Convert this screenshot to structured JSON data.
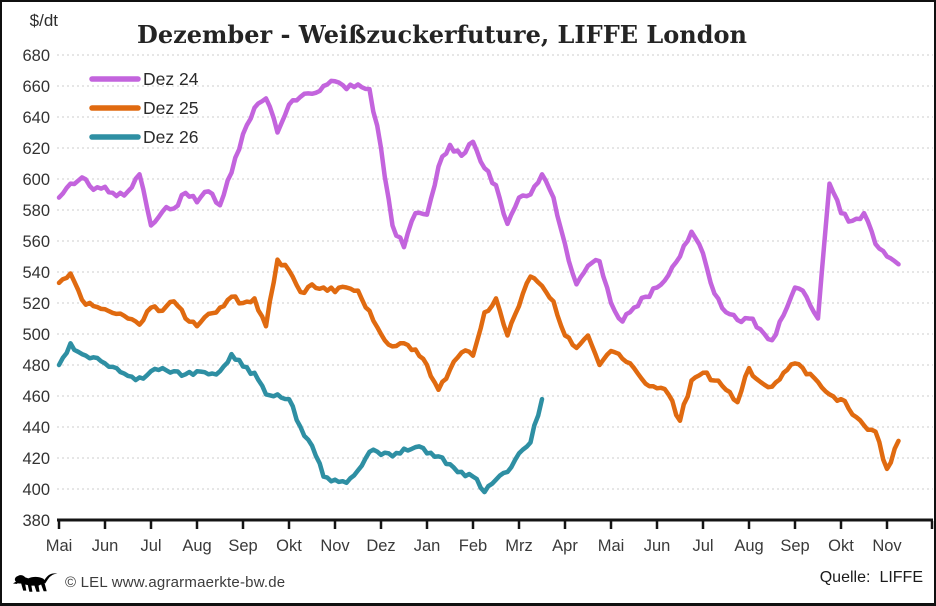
{
  "chart_data": {
    "type": "line",
    "title": "Dezember - Weißzuckerfuture, LIFFE London",
    "y_unit_label": "$/dt",
    "ylim": [
      380,
      680
    ],
    "y_ticks": [
      380,
      400,
      420,
      440,
      460,
      480,
      500,
      520,
      540,
      560,
      580,
      600,
      620,
      640,
      660,
      680
    ],
    "x_tick_labels": [
      "Mai",
      "Jun",
      "Jul",
      "Aug",
      "Sep",
      "Okt",
      "Nov",
      "Dez",
      "Jan",
      "Feb",
      "Mrz",
      "Apr",
      "Mai",
      "Jun",
      "Jul",
      "Aug",
      "Sep",
      "Okt",
      "Nov"
    ],
    "grid": "horizontal-dashed",
    "legend_position": "top-left-inside",
    "step_months": 0.25,
    "series": [
      {
        "name": "Dez 24",
        "color": "#c364dd",
        "values": [
          588,
          597,
          601,
          593,
          595,
          589,
          592,
          603,
          570,
          579,
          581,
          591,
          585,
          592,
          583,
          604,
          629,
          646,
          652,
          630,
          648,
          653,
          655,
          660,
          663,
          658,
          661,
          658,
          620,
          570,
          556,
          578,
          577,
          608,
          622,
          615,
          624,
          607,
          596,
          571,
          588,
          590,
          603,
          588,
          558,
          532,
          544,
          547,
          520,
          508,
          517,
          524,
          530,
          538,
          550,
          566,
          552,
          526,
          514,
          509,
          510,
          503,
          496,
          512,
          530,
          524,
          510,
          597,
          578,
          573,
          578,
          558,
          550,
          545
        ]
      },
      {
        "name": "Dez 25",
        "color": "#e06a10",
        "values": [
          533,
          539,
          522,
          518,
          516,
          513,
          510,
          506,
          517,
          515,
          521,
          510,
          505,
          513,
          517,
          524,
          520,
          523,
          505,
          548,
          541,
          527,
          532,
          530,
          527,
          530,
          528,
          515,
          500,
          492,
          494,
          490,
          480,
          464,
          477,
          488,
          486,
          514,
          523,
          499,
          518,
          537,
          531,
          521,
          499,
          491,
          499,
          480,
          489,
          484,
          478,
          468,
          465,
          461,
          444,
          470,
          475,
          470,
          464,
          456,
          478,
          469,
          466,
          475,
          481,
          474,
          469,
          461,
          458,
          448,
          441,
          437,
          413,
          431
        ]
      },
      {
        "name": "Dez 26",
        "color": "#2e8fa3",
        "values": [
          480,
          494,
          487,
          485,
          481,
          478,
          473,
          472,
          476,
          478,
          476,
          474,
          476,
          474,
          476,
          487,
          479,
          475,
          461,
          461,
          458,
          440,
          428,
          408,
          406,
          404,
          412,
          424,
          422,
          421,
          426,
          427,
          423,
          421,
          416,
          411,
          408,
          398,
          406,
          411,
          423,
          430,
          458
        ]
      }
    ]
  },
  "footer": {
    "copyright": "© LEL www.agrarmaerkte-bw.de",
    "source_label": "Quelle:",
    "source_value": "LIFFE",
    "logo": "baden-wuerttemberg-lion"
  }
}
